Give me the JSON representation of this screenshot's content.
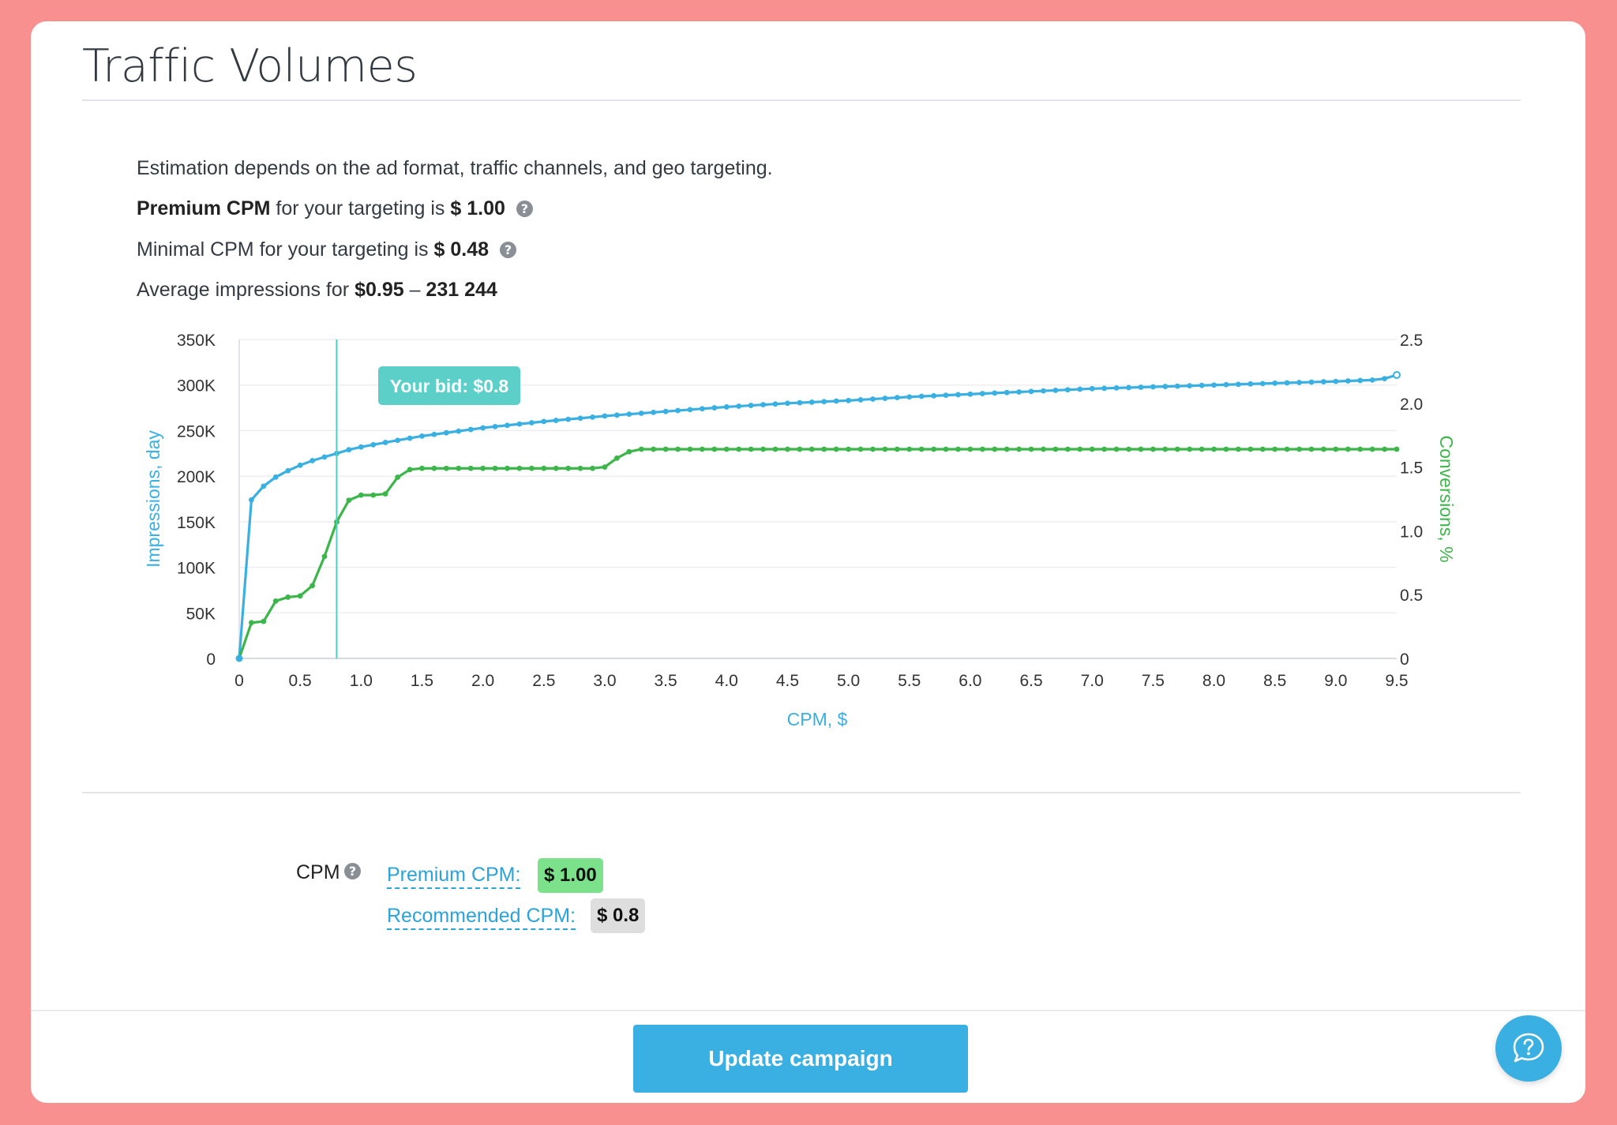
{
  "page": {
    "title": "Traffic Volumes",
    "bg_color": "#f99090",
    "accent": "#3aafe2"
  },
  "info": {
    "line1": "Estimation depends on the ad format, traffic channels, and geo targeting.",
    "premium": {
      "bold": "Premium CPM",
      "mid": " for your targeting is ",
      "value": "$ 1.00"
    },
    "minimal": {
      "pre": "Minimal CPM for your targeting is ",
      "value": "$ 0.48"
    },
    "average": {
      "pre": "Average impressions for ",
      "price": "$0.95",
      "sep": " – ",
      "value": "231 244"
    }
  },
  "chart_data": {
    "type": "line",
    "xlabel": "CPM, $",
    "ylabel_left": "Impressions, day",
    "ylabel_right": "Conversions, %",
    "xlim": [
      0,
      9.5
    ],
    "ylim_left": [
      0,
      350000
    ],
    "ylim_right": [
      0,
      2.5
    ],
    "x_ticks": [
      "0",
      "0.5",
      "1.0",
      "1.5",
      "2.0",
      "2.5",
      "3.0",
      "3.5",
      "4.0",
      "4.5",
      "5.0",
      "5.5",
      "6.0",
      "6.5",
      "7.0",
      "7.5",
      "8.0",
      "8.5",
      "9.0",
      "9.5"
    ],
    "y_left_ticks": [
      "0",
      "50K",
      "100K",
      "150K",
      "200K",
      "250K",
      "300K",
      "350K"
    ],
    "y_right_ticks": [
      "0",
      "0.5",
      "1.0",
      "1.5",
      "2.0",
      "2.5"
    ],
    "grid": true,
    "bid_marker": {
      "x": 0.8,
      "label": "Your bid: $0.8"
    },
    "series": [
      {
        "name": "Impressions, day",
        "axis": "left",
        "color": "#3aafe2",
        "x": [
          0,
          0.1,
          0.2,
          0.3,
          0.4,
          0.5,
          0.6,
          0.7,
          0.8,
          0.9,
          1.0,
          1.2,
          1.5,
          2.0,
          2.5,
          3.0,
          3.5,
          4.0,
          4.5,
          5.0,
          5.5,
          6.0,
          6.5,
          7.0,
          7.5,
          8.0,
          8.5,
          9.0,
          9.3,
          9.4,
          9.5
        ],
        "values": [
          0,
          174000,
          189000,
          199000,
          206000,
          212000,
          217000,
          221000,
          225000,
          229000,
          232000,
          237000,
          244000,
          253000,
          260000,
          266000,
          271000,
          276000,
          280000,
          283000,
          287000,
          290000,
          293000,
          296000,
          298000,
          300000,
          302000,
          304000,
          305500,
          307000,
          311000
        ]
      },
      {
        "name": "Conversions, %",
        "axis": "right",
        "color": "#3cb54a",
        "x": [
          0,
          0.1,
          0.2,
          0.3,
          0.4,
          0.5,
          0.6,
          0.7,
          0.8,
          0.9,
          1.0,
          1.1,
          1.2,
          1.3,
          1.4,
          1.5,
          1.6,
          2.0,
          2.5,
          2.9,
          3.0,
          3.1,
          3.2,
          3.3,
          3.4,
          4.0,
          5.0,
          6.0,
          7.0,
          8.0,
          9.0,
          9.5
        ],
        "values": [
          0,
          0.28,
          0.29,
          0.45,
          0.48,
          0.49,
          0.57,
          0.8,
          1.07,
          1.24,
          1.28,
          1.28,
          1.29,
          1.42,
          1.48,
          1.49,
          1.49,
          1.49,
          1.49,
          1.49,
          1.5,
          1.57,
          1.62,
          1.64,
          1.64,
          1.64,
          1.64,
          1.64,
          1.64,
          1.64,
          1.64,
          1.64
        ]
      }
    ]
  },
  "cpm": {
    "label": "CPM",
    "premium_link": "Premium CPM:",
    "premium_value": "$ 1.00",
    "premium_color": "#7be28b",
    "recommended_link": "Recommended CPM:",
    "recommended_value": "$ 0.8",
    "recommended_color": "#dedede"
  },
  "footer": {
    "update_button": "Update campaign",
    "help_icon": "question-chat-icon"
  }
}
